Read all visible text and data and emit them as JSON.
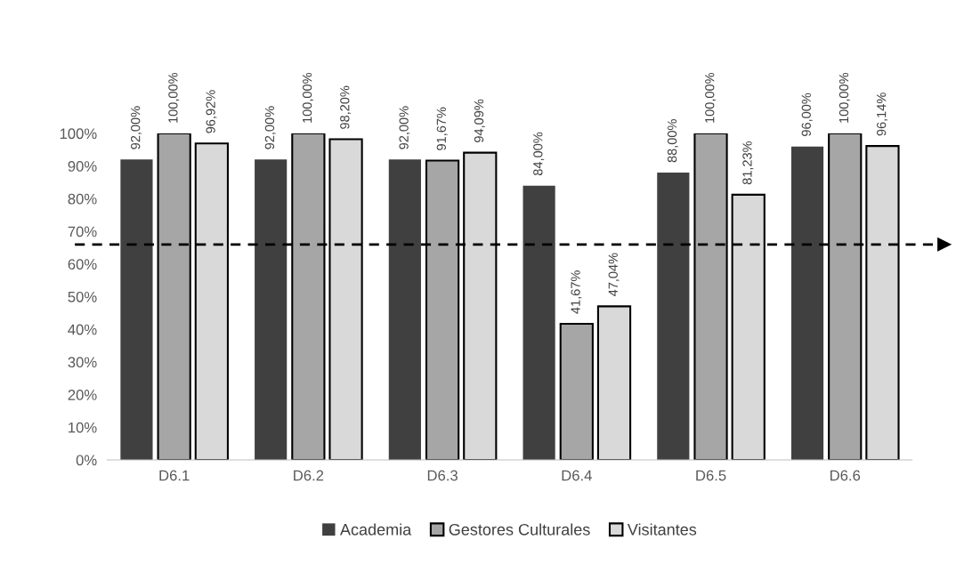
{
  "chart_data": {
    "type": "bar",
    "categories": [
      "D6.1",
      "D6.2",
      "D6.3",
      "D6.4",
      "D6.5",
      "D6.6"
    ],
    "series": [
      {
        "name": "Academia",
        "color": "#404040",
        "values": [
          92,
          92,
          92,
          84,
          88,
          96
        ],
        "value_labels": [
          "92,00%",
          "92,00%",
          "92,00%",
          "84,00%",
          "88,00%",
          "96,00%"
        ]
      },
      {
        "name": "Gestores Culturales",
        "color": "#a6a6a6",
        "values": [
          100,
          100,
          91.67,
          41.67,
          100,
          100
        ],
        "value_labels": [
          "100,00%",
          "100,00%",
          "91,67%",
          "41,67%",
          "100,00%",
          "100,00%"
        ]
      },
      {
        "name": "Visitantes",
        "color": "#d9d9d9",
        "values": [
          96.92,
          98.2,
          94.09,
          47.04,
          81.23,
          96.14
        ],
        "value_labels": [
          "96,92%",
          "98,20%",
          "94,09%",
          "47,04%",
          "81,23%",
          "96,14%"
        ]
      }
    ],
    "ylim": [
      0,
      100
    ],
    "yticks": [
      {
        "value": 0,
        "label": "0%"
      },
      {
        "value": 10,
        "label": "10%"
      },
      {
        "value": 20,
        "label": "20%"
      },
      {
        "value": 30,
        "label": "30%"
      },
      {
        "value": 40,
        "label": "40%"
      },
      {
        "value": 50,
        "label": "50%"
      },
      {
        "value": 60,
        "label": "60%"
      },
      {
        "value": 70,
        "label": "70%"
      },
      {
        "value": 80,
        "label": "80%"
      },
      {
        "value": 90,
        "label": "90%"
      },
      {
        "value": 100,
        "label": "100%"
      }
    ],
    "ref_lines": [
      {
        "axis": "y",
        "value": 66,
        "color": "#000000",
        "line_style": "dashed"
      }
    ],
    "grid": false,
    "legend": "bottom"
  }
}
